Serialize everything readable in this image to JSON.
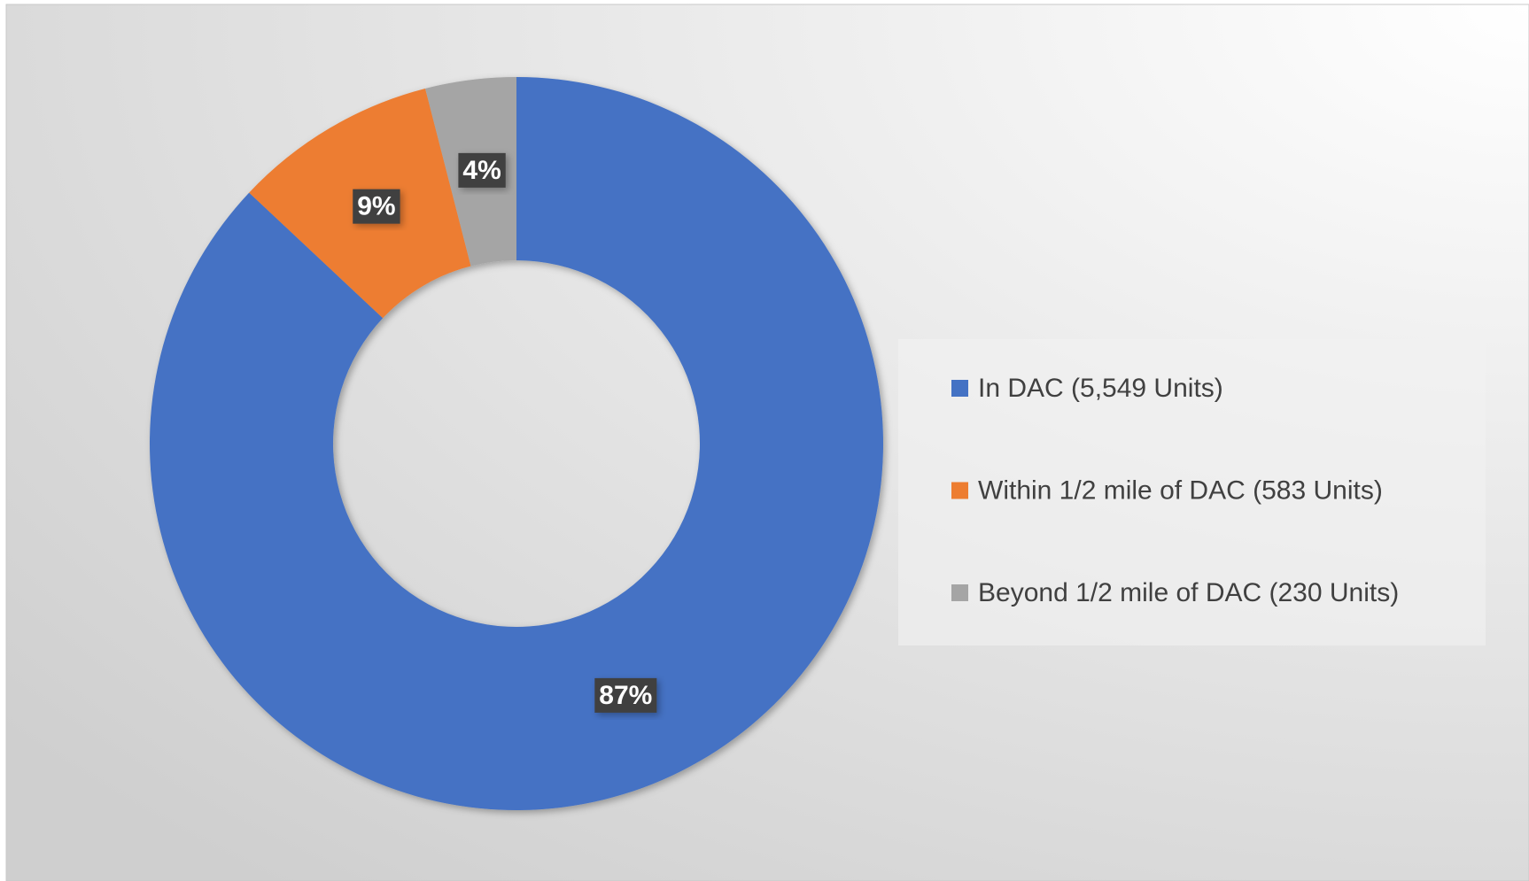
{
  "chart_data": {
    "type": "donut",
    "categories": [
      "In DAC (5,549 Units)",
      "Within 1/2 mile of DAC (583 Units)",
      "Beyond 1/2 mile of DAC (230 Units)"
    ],
    "values": [
      87,
      9,
      4
    ],
    "value_labels": [
      "87%",
      "9%",
      "4%"
    ],
    "colors": [
      "#4472c4",
      "#ed7d31",
      "#a5a5a5"
    ],
    "legend": "right"
  }
}
